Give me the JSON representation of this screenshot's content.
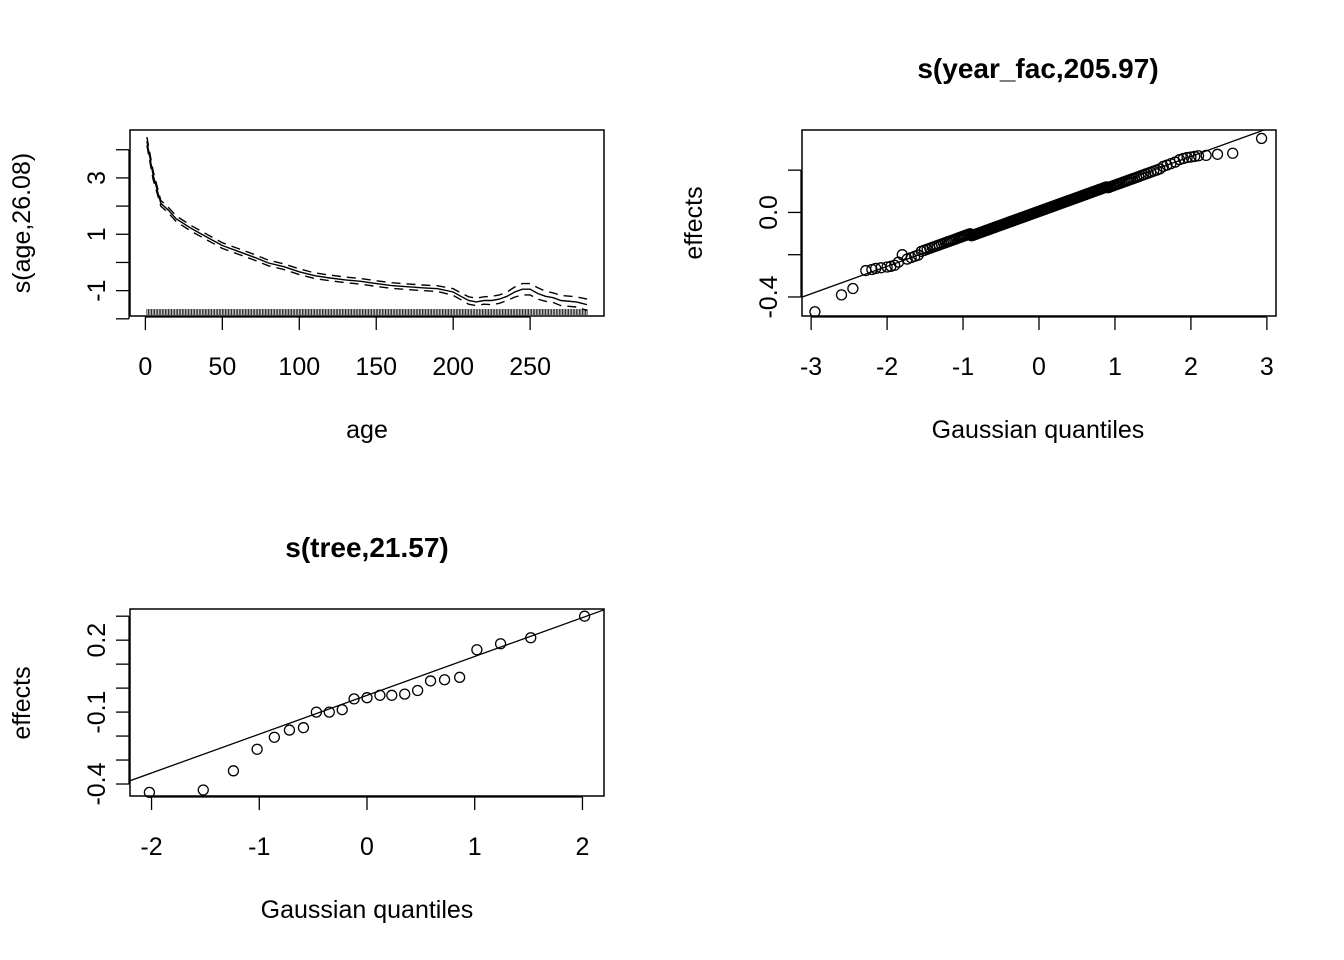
{
  "chart_data": [
    {
      "type": "line",
      "title": "",
      "xlabel": "age",
      "ylabel": "s(age,26.08)",
      "xlim": [
        -10,
        298
      ],
      "ylim": [
        -1.9,
        4.7
      ],
      "xticks": [
        0,
        50,
        100,
        150,
        200,
        250
      ],
      "xtick_labels": [
        "0",
        "50",
        "100",
        "150",
        "200",
        "250"
      ],
      "yticks": [
        -2,
        -1,
        0,
        1,
        2,
        3,
        4
      ],
      "ytick_labels": [
        "",
        "-1",
        "",
        "1",
        "",
        "3",
        ""
      ],
      "series": [
        {
          "role": "estimate",
          "x": [
            1,
            5,
            10,
            15,
            20,
            30,
            40,
            50,
            60,
            70,
            80,
            90,
            100,
            110,
            120,
            130,
            140,
            150,
            160,
            170,
            180,
            190,
            200,
            205,
            210,
            215,
            220,
            225,
            230,
            235,
            240,
            245,
            250,
            255,
            260,
            265,
            270,
            280,
            287
          ],
          "y": [
            4.3,
            3.1,
            2.1,
            1.85,
            1.55,
            1.2,
            0.9,
            0.6,
            0.4,
            0.2,
            -0.02,
            -0.15,
            -0.33,
            -0.47,
            -0.55,
            -0.62,
            -0.67,
            -0.75,
            -0.82,
            -0.86,
            -0.9,
            -0.93,
            -1.05,
            -1.2,
            -1.35,
            -1.4,
            -1.35,
            -1.35,
            -1.3,
            -1.2,
            -1.05,
            -0.95,
            -0.95,
            -1.1,
            -1.2,
            -1.25,
            -1.35,
            -1.4,
            -1.5
          ]
        },
        {
          "role": "upper-band",
          "x": [
            1,
            5,
            10,
            15,
            20,
            30,
            40,
            50,
            60,
            70,
            80,
            90,
            100,
            110,
            120,
            130,
            140,
            150,
            160,
            170,
            180,
            190,
            200,
            205,
            210,
            215,
            220,
            225,
            230,
            235,
            240,
            245,
            250,
            255,
            260,
            265,
            270,
            280,
            287
          ],
          "y": [
            4.45,
            3.25,
            2.2,
            1.95,
            1.65,
            1.3,
            1.0,
            0.7,
            0.5,
            0.3,
            0.08,
            -0.05,
            -0.23,
            -0.37,
            -0.45,
            -0.52,
            -0.57,
            -0.65,
            -0.72,
            -0.76,
            -0.8,
            -0.83,
            -0.93,
            -1.08,
            -1.22,
            -1.27,
            -1.22,
            -1.2,
            -1.15,
            -1.05,
            -0.87,
            -0.75,
            -0.75,
            -0.9,
            -1.02,
            -1.08,
            -1.17,
            -1.22,
            -1.3
          ]
        },
        {
          "role": "lower-band",
          "x": [
            1,
            5,
            10,
            15,
            20,
            30,
            40,
            50,
            60,
            70,
            80,
            90,
            100,
            110,
            120,
            130,
            140,
            150,
            160,
            170,
            180,
            190,
            200,
            205,
            210,
            215,
            220,
            225,
            230,
            235,
            240,
            245,
            250,
            255,
            260,
            265,
            270,
            280,
            287
          ],
          "y": [
            4.15,
            2.95,
            2.0,
            1.75,
            1.45,
            1.1,
            0.8,
            0.5,
            0.3,
            0.1,
            -0.12,
            -0.25,
            -0.43,
            -0.57,
            -0.65,
            -0.72,
            -0.77,
            -0.85,
            -0.92,
            -0.96,
            -1.0,
            -1.03,
            -1.17,
            -1.32,
            -1.48,
            -1.53,
            -1.48,
            -1.5,
            -1.45,
            -1.35,
            -1.23,
            -1.15,
            -1.15,
            -1.3,
            -1.38,
            -1.42,
            -1.53,
            -1.58,
            -1.7
          ]
        }
      ],
      "rug": {
        "from": 1,
        "to": 287
      }
    },
    {
      "type": "scatter",
      "title": "s(year_fac,205.97)",
      "xlabel": "Gaussian quantiles",
      "ylabel": "effects",
      "xlim": [
        -3.12,
        3.12
      ],
      "ylim": [
        -0.49,
        0.39
      ],
      "xticks": [
        -3,
        -2,
        -1,
        0,
        1,
        2,
        3
      ],
      "xtick_labels": [
        "-3",
        "-2",
        "-1",
        "0",
        "1",
        "2",
        "3"
      ],
      "yticks": [
        -0.4,
        -0.2,
        0.0,
        0.2
      ],
      "ytick_labels": [
        "-0.4",
        "",
        "0.0",
        ""
      ],
      "reference_line": {
        "slope": 0.13,
        "intercept": 0.005
      },
      "n_points": 206,
      "tail_points": {
        "x": [
          -2.95,
          -2.6,
          -2.45,
          -2.28,
          -2.2,
          -2.15,
          -2.08,
          -2.0,
          -1.95,
          -1.9,
          -1.85,
          -1.8,
          1.85,
          1.9,
          1.95,
          2.0,
          2.05,
          2.1,
          2.2,
          2.35,
          2.55,
          2.93
        ],
        "y": [
          -0.47,
          -0.39,
          -0.36,
          -0.275,
          -0.27,
          -0.265,
          -0.262,
          -0.258,
          -0.255,
          -0.25,
          -0.235,
          -0.2,
          0.25,
          0.255,
          0.26,
          0.262,
          0.265,
          0.268,
          0.27,
          0.275,
          0.28,
          0.35
        ]
      }
    },
    {
      "type": "scatter",
      "title": "s(tree,21.57)",
      "xlabel": "Gaussian quantiles",
      "ylabel": "effects",
      "xlim": [
        -2.2,
        2.2
      ],
      "ylim": [
        -0.45,
        0.33
      ],
      "xticks": [
        -2,
        -1,
        0,
        1,
        2
      ],
      "xtick_labels": [
        "-2",
        "-1",
        "0",
        "1",
        "2"
      ],
      "yticks": [
        -0.4,
        -0.3,
        -0.2,
        -0.1,
        0.0,
        0.1,
        0.2,
        0.3
      ],
      "ytick_labels": [
        "-0.4",
        "",
        "",
        "-0.1",
        "",
        "",
        "0.2",
        ""
      ],
      "reference_line": {
        "slope": 0.162,
        "intercept": -0.03
      },
      "points": {
        "x": [
          -2.02,
          -1.52,
          -1.24,
          -1.02,
          -0.86,
          -0.72,
          -0.59,
          -0.47,
          -0.35,
          -0.23,
          -0.12,
          0.0,
          0.12,
          0.23,
          0.35,
          0.47,
          0.59,
          0.72,
          0.86,
          1.02,
          1.24,
          1.52,
          2.02
        ],
        "y": [
          -0.435,
          -0.425,
          -0.345,
          -0.255,
          -0.205,
          -0.175,
          -0.165,
          -0.1,
          -0.1,
          -0.09,
          -0.045,
          -0.04,
          -0.03,
          -0.03,
          -0.025,
          -0.01,
          0.03,
          0.035,
          0.045,
          0.16,
          0.185,
          0.21,
          0.3
        ]
      }
    }
  ]
}
